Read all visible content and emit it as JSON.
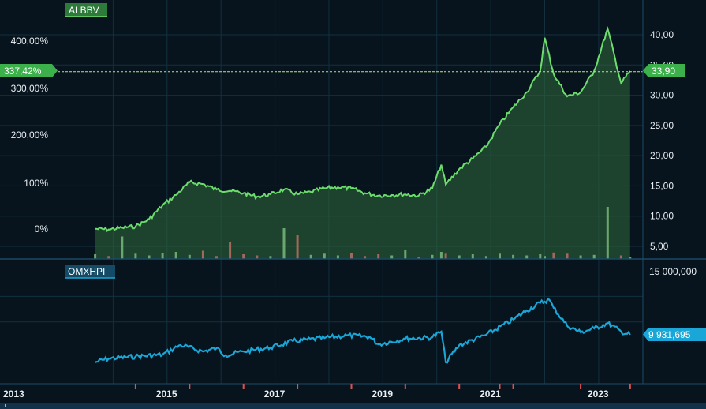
{
  "colors": {
    "background": "#07141d",
    "grid": "#12303f",
    "frame": "#1b4a66",
    "tick_text": "#e8eef2",
    "albbv": "#6cdc6c",
    "albbv_fill": "#2f6a3c",
    "omxhpi": "#1aa6d6",
    "volume_up": "#78b878",
    "volume_down": "#b87060",
    "event_marker": "#e05050"
  },
  "chart_data": [
    {
      "type": "line",
      "name": "ALBBV",
      "legend": "ALBBV",
      "x": [
        "2013-09",
        "2013-12",
        "2014-03",
        "2014-06",
        "2014-09",
        "2014-12",
        "2015-03",
        "2015-06",
        "2015-09",
        "2015-12",
        "2016-03",
        "2016-06",
        "2016-09",
        "2016-12",
        "2017-03",
        "2017-06",
        "2017-09",
        "2017-12",
        "2018-03",
        "2018-06",
        "2018-09",
        "2018-12",
        "2019-03",
        "2019-06",
        "2019-09",
        "2019-12",
        "2020-02",
        "2020-03",
        "2020-06",
        "2020-09",
        "2020-12",
        "2021-03",
        "2021-06",
        "2021-09",
        "2021-12",
        "2022-01",
        "2022-03",
        "2022-06",
        "2022-09",
        "2022-12",
        "2023-03",
        "2023-06",
        "2023-08"
      ],
      "values": [
        7.9,
        7.8,
        8.1,
        8.3,
        9.5,
        11.8,
        13.5,
        15.6,
        15.3,
        14.4,
        14.2,
        13.8,
        13.2,
        13.6,
        14.4,
        13.6,
        14.0,
        14.6,
        14.8,
        14.6,
        13.8,
        13.4,
        13.5,
        13.6,
        13.4,
        14.6,
        18.5,
        15.2,
        17.8,
        19.5,
        21.5,
        25.2,
        28.0,
        30.5,
        34.0,
        39.5,
        33.5,
        29.8,
        30.5,
        34.0,
        41.0,
        32.0,
        34.0
      ],
      "volume": [
        0.8,
        0.5,
        3.8,
        0.9,
        0.6,
        1.0,
        1.2,
        0.7,
        1.4,
        0.5,
        2.8,
        0.8,
        0.6,
        0.5,
        5.2,
        4.1,
        0.7,
        0.9,
        0.6,
        1.0,
        0.5,
        0.8,
        0.6,
        1.5,
        0.4,
        0.7,
        1.2,
        0.9,
        0.6,
        0.8,
        0.5,
        0.9,
        0.7,
        0.6,
        0.8,
        0.5,
        1.1,
        0.9,
        0.6,
        0.7,
        8.8,
        0.6,
        0.4
      ],
      "current_value_label": "33,90",
      "percent_change_label": "337,42%",
      "y_right_ticks": [
        "40,00",
        "35,00",
        "30,00",
        "25,00",
        "20,00",
        "15,00",
        "10,00",
        "5,00"
      ],
      "y_left_ticks": [
        "400,00%",
        "300,00%",
        "200,00%",
        "100%",
        "0%"
      ],
      "ylim": [
        3.5,
        42.5
      ]
    },
    {
      "type": "line",
      "name": "OMXHPI",
      "legend": "OMXHPI",
      "x": [
        "2013-09",
        "2013-12",
        "2014-06",
        "2014-12",
        "2015-04",
        "2015-09",
        "2015-12",
        "2016-02",
        "2016-06",
        "2016-12",
        "2017-05",
        "2017-12",
        "2018-05",
        "2018-10",
        "2018-12",
        "2019-06",
        "2019-12",
        "2020-02",
        "2020-03",
        "2020-06",
        "2020-12",
        "2021-06",
        "2021-09",
        "2021-12",
        "2022-02",
        "2022-03",
        "2022-06",
        "2022-09",
        "2022-12",
        "2023-03",
        "2023-06",
        "2023-08"
      ],
      "values": [
        7850000,
        8150000,
        8300000,
        8450000,
        9200000,
        8700000,
        8950000,
        8400000,
        8700000,
        9000000,
        9500000,
        9750000,
        9950000,
        9850000,
        9250000,
        9700000,
        9800000,
        10250000,
        7850000,
        9200000,
        10000000,
        11200000,
        11900000,
        12500000,
        12750000,
        12100000,
        10700000,
        10200000,
        10500000,
        10900000,
        10250000,
        10000000
      ],
      "current_value_label": "9 931,695",
      "y_right_ticks": [
        "15 000,000"
      ],
      "ylim": [
        7700000,
        15000000
      ]
    }
  ],
  "x_axis": {
    "tick_labels": [
      "2013",
      "2015",
      "2017",
      "2019",
      "2021",
      "2023"
    ],
    "tick_years": [
      2013,
      2015,
      2017,
      2019,
      2021,
      2023
    ]
  },
  "event_markers": [
    "2014-06",
    "2015-06",
    "2016-06",
    "2017-06",
    "2018-06",
    "2019-06",
    "2020-06",
    "2021-03",
    "2021-06",
    "2022-09",
    "2023-08"
  ]
}
